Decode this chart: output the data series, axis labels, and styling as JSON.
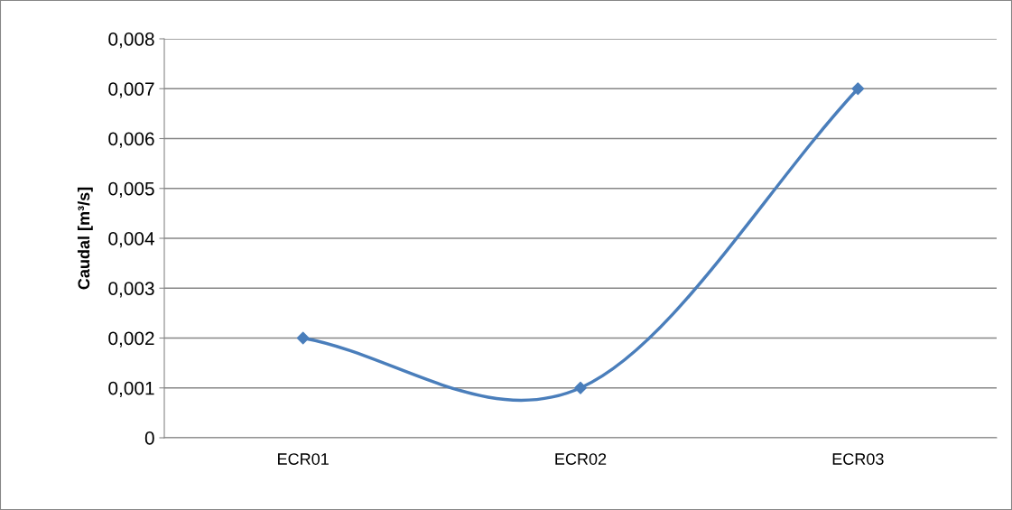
{
  "chart_data": {
    "type": "line",
    "ylabel": "Caudal [m³/s]",
    "categories": [
      "ECR01",
      "ECR02",
      "ECR03"
    ],
    "series": [
      {
        "color": "#4a7ebb",
        "values": [
          0.002,
          0.001,
          0.007
        ]
      }
    ],
    "ylim": [
      0,
      0.008
    ],
    "yticks": [
      0,
      {
        "value": 0.001,
        "label": "0,001"
      },
      {
        "value": 0.002,
        "label": "0,002"
      },
      {
        "value": 0.003,
        "label": "0,003"
      },
      {
        "value": 0.004,
        "label": "0,004"
      },
      {
        "value": 0.005,
        "label": "0,005"
      },
      {
        "value": 0.006,
        "label": "0,006"
      },
      {
        "value": 0.007,
        "label": "0,007"
      },
      {
        "value": 0.008,
        "label": "0,008"
      }
    ],
    "grid": "y",
    "legend": false,
    "marker": "diamond",
    "line_style": "solid"
  }
}
